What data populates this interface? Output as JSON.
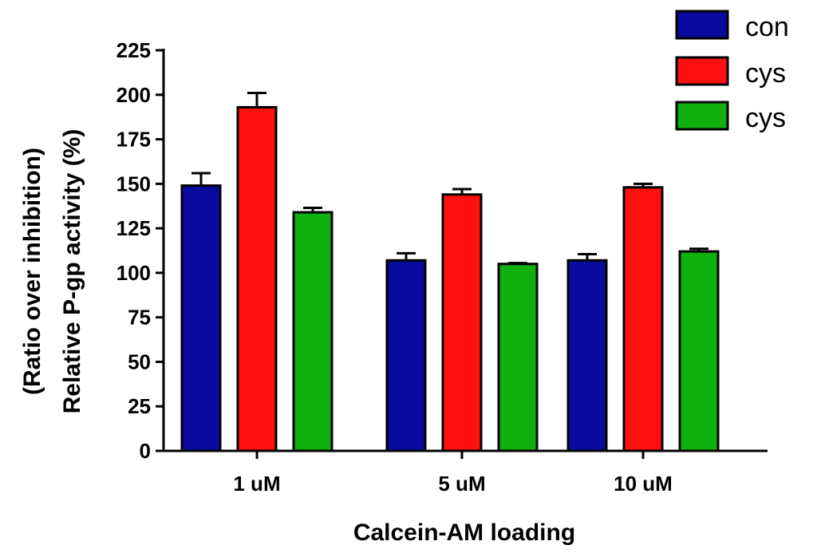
{
  "chart_data": {
    "type": "bar",
    "xlabel": "Calcein-AM loading",
    "ylabel_lines": [
      "(Ratio over inhibition)",
      "Relative P-gp activity (%)"
    ],
    "categories": [
      "1 uM",
      "5 uM",
      "10 uM"
    ],
    "ylim": [
      0,
      225
    ],
    "yticks": [
      "0",
      "25",
      "50",
      "75",
      "100",
      "125",
      "150",
      "175",
      "200",
      "225"
    ],
    "legend_position": "top-right",
    "series": [
      {
        "name": "con",
        "color": "#0a0a9e",
        "values": [
          149,
          107,
          107
        ],
        "errors": [
          7,
          4,
          3.5
        ]
      },
      {
        "name": "cys",
        "color": "#ff1010",
        "values": [
          193,
          144,
          148
        ],
        "errors": [
          8,
          3,
          2
        ]
      },
      {
        "name": "cys",
        "color": "#10b010",
        "values": [
          134,
          105,
          112
        ],
        "errors": [
          2.5,
          0.5,
          1.5
        ]
      }
    ]
  }
}
